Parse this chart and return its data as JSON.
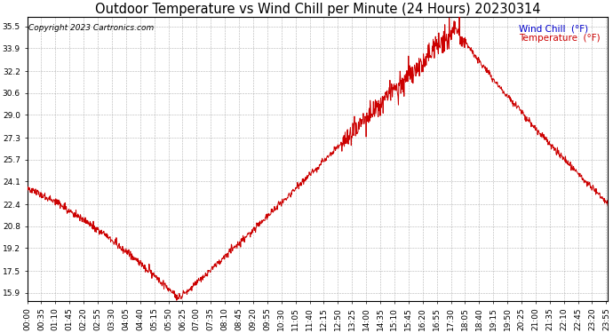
{
  "title": "Outdoor Temperature vs Wind Chill per Minute (24 Hours) 20230314",
  "copyright_text": "Copyright 2023 Cartronics.com",
  "legend_wind_chill": "Wind Chill  (°F)",
  "legend_temperature": "Temperature  (°F)",
  "line_color": "#cc0000",
  "wind_chill_legend_color": "#0000cc",
  "temperature_legend_color": "#cc0000",
  "yticks": [
    15.9,
    17.5,
    19.2,
    20.8,
    22.4,
    24.1,
    25.7,
    27.3,
    29.0,
    30.6,
    32.2,
    33.9,
    35.5
  ],
  "ylim": [
    15.3,
    36.2
  ],
  "background_color": "#ffffff",
  "grid_color": "#aaaaaa",
  "title_fontsize": 10.5,
  "tick_fontsize": 6.5,
  "copyright_fontsize": 6.5
}
